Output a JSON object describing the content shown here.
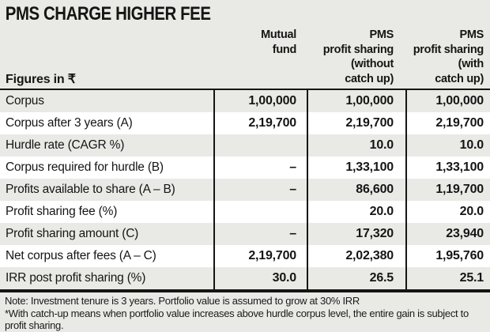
{
  "title": "PMS CHARGE HIGHER FEE",
  "table": {
    "unit_label": "Figures in ₹",
    "col_headers": [
      "Mutual\nfund",
      "PMS\nprofit sharing\n(without\ncatch up)",
      "PMS\nprofit sharing\n(with\ncatch up)"
    ],
    "rows": [
      {
        "label": "Corpus",
        "mutual_fund": "1,00,000",
        "pms_without_catchup": "1,00,000",
        "pms_with_catchup": "1,00,000"
      },
      {
        "label": "Corpus after 3 years (A)",
        "mutual_fund": "2,19,700",
        "pms_without_catchup": "2,19,700",
        "pms_with_catchup": "2,19,700"
      },
      {
        "label": "Hurdle rate (CAGR %)",
        "mutual_fund": "",
        "pms_without_catchup": "10.0",
        "pms_with_catchup": "10.0"
      },
      {
        "label": "Corpus required for hurdle (B)",
        "mutual_fund": "–",
        "pms_without_catchup": "1,33,100",
        "pms_with_catchup": "1,33,100"
      },
      {
        "label": "Profits available to share (A – B)",
        "mutual_fund": "–",
        "pms_without_catchup": "86,600",
        "pms_with_catchup": "1,19,700"
      },
      {
        "label": "Profit sharing fee (%)",
        "mutual_fund": "",
        "pms_without_catchup": "20.0",
        "pms_with_catchup": "20.0"
      },
      {
        "label": "Profit sharing amount (C)",
        "mutual_fund": "–",
        "pms_without_catchup": "17,320",
        "pms_with_catchup": "23,940"
      },
      {
        "label": "Net corpus after fees (A – C)",
        "mutual_fund": "2,19,700",
        "pms_without_catchup": "2,02,380",
        "pms_with_catchup": "1,95,760"
      },
      {
        "label": "IRR post profit sharing (%)",
        "mutual_fund": "30.0",
        "pms_without_catchup": "26.5",
        "pms_with_catchup": "25.1"
      }
    ]
  },
  "notes": [
    "Note: Investment tenure is 3 years. Portfolio value is assumed to grow at 30% IRR",
    "*With catch-up means when portfolio value increases above hurdle corpus level, the entire gain is subject to profit sharing."
  ],
  "colors": {
    "background": "#e9e9e5",
    "row_white": "#ffffff",
    "row_gray": "#e9e9e5",
    "text": "#151515",
    "line": "#151515"
  },
  "chart_data": {
    "type": "table",
    "title": "PMS CHARGE HIGHER FEE",
    "unit": "Figures in ₹",
    "columns": [
      "Mutual fund",
      "PMS profit sharing (without catch up)",
      "PMS profit sharing (with catch up)"
    ],
    "rows": [
      {
        "label": "Corpus",
        "values": [
          100000,
          100000,
          100000
        ]
      },
      {
        "label": "Corpus after 3 years (A)",
        "values": [
          219700,
          219700,
          219700
        ]
      },
      {
        "label": "Hurdle rate (CAGR %)",
        "values": [
          null,
          10.0,
          10.0
        ]
      },
      {
        "label": "Corpus required for hurdle (B)",
        "values": [
          null,
          133100,
          133100
        ]
      },
      {
        "label": "Profits available to share (A – B)",
        "values": [
          null,
          86600,
          119700
        ]
      },
      {
        "label": "Profit sharing fee (%)",
        "values": [
          null,
          20.0,
          20.0
        ]
      },
      {
        "label": "Profit sharing amount (C)",
        "values": [
          null,
          17320,
          23940
        ]
      },
      {
        "label": "Net corpus after fees (A – C)",
        "values": [
          219700,
          202380,
          195760
        ]
      },
      {
        "label": "IRR post profit sharing (%)",
        "values": [
          30.0,
          26.5,
          25.1
        ]
      }
    ],
    "notes": [
      "Note: Investment tenure is 3 years. Portfolio value is assumed to grow at 30% IRR",
      "*With catch-up means when portfolio value increases above hurdle corpus level, the entire gain is subject to profit sharing."
    ]
  }
}
